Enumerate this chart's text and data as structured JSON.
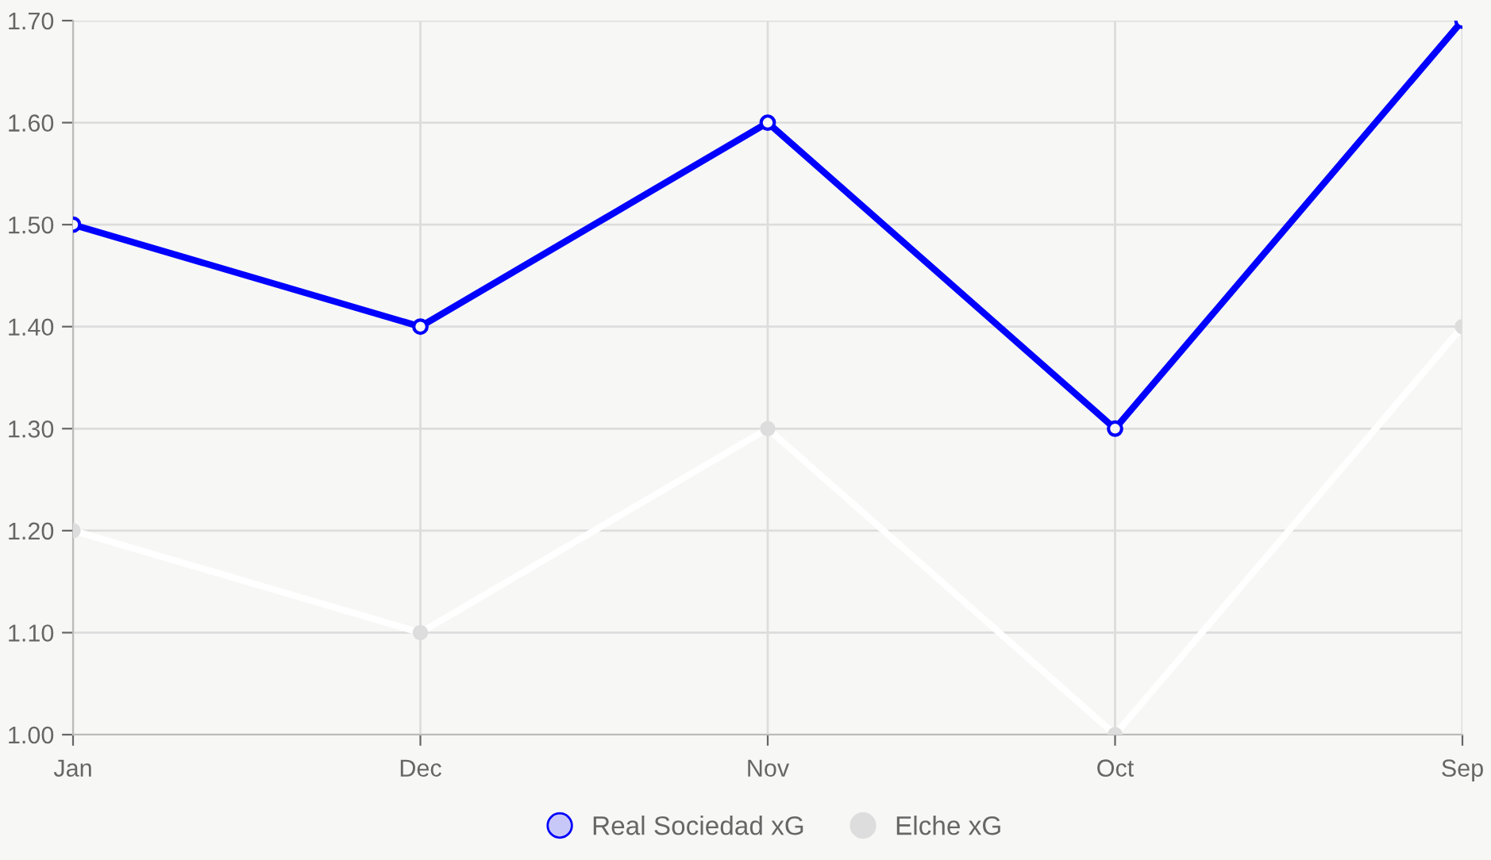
{
  "chart_data": {
    "type": "line",
    "categories": [
      "Jan",
      "Dec",
      "Nov",
      "Oct",
      "Sep"
    ],
    "series": [
      {
        "name": "Real Sociedad xG",
        "color": "#0000ff",
        "values": [
          1.5,
          1.4,
          1.6,
          1.3,
          1.7
        ]
      },
      {
        "name": "Elche xG",
        "color": "#ffffff",
        "values": [
          1.2,
          1.1,
          1.3,
          1.0,
          1.4
        ]
      }
    ],
    "ylim": [
      1.0,
      1.7
    ],
    "yticks": [
      {
        "value": 1.0,
        "label": "1.00"
      },
      {
        "value": 1.1,
        "label": "1.10"
      },
      {
        "value": 1.2,
        "label": "1.20"
      },
      {
        "value": 1.3,
        "label": "1.30"
      },
      {
        "value": 1.4,
        "label": "1.40"
      },
      {
        "value": 1.5,
        "label": "1.50"
      },
      {
        "value": 1.6,
        "label": "1.60"
      },
      {
        "value": 1.7,
        "label": "1.70"
      }
    ],
    "grid": true,
    "legend": "bottom",
    "marker": "circle",
    "line_style": "solid"
  }
}
